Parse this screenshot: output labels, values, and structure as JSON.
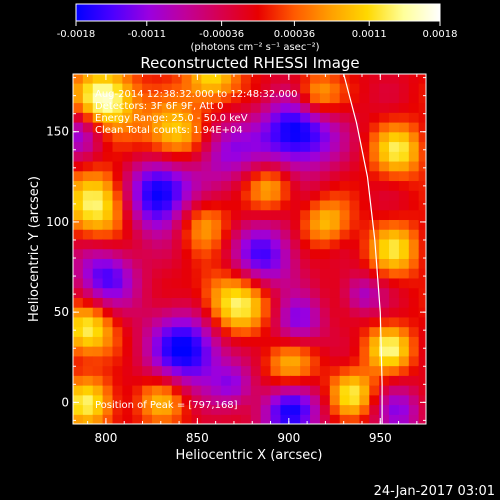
{
  "colorbar": {
    "tick_labels": [
      "-0.0018",
      "-0.0011",
      "-0.00036",
      "0.00036",
      "0.0011",
      "0.0018"
    ],
    "min": -0.0018,
    "max": 0.0018,
    "unit_label": "(photons cm⁻² s⁻¹ asec⁻²)",
    "stops": [
      "#0000ff",
      "#4b00ff",
      "#9a00e0",
      "#c0009a",
      "#d8004c",
      "#e80000",
      "#ff5a00",
      "#ff9f00",
      "#ffd800",
      "#ffff9a",
      "#ffffff"
    ]
  },
  "chart_data": {
    "type": "heatmap",
    "title": "Reconstructed RHESSI Image",
    "xlabel": "Heliocentric X (arcsec)",
    "ylabel": "Heliocentric Y (arcsec)",
    "xlim": [
      782,
      975
    ],
    "ylim": [
      -12,
      182
    ],
    "x_ticks": [
      800,
      850,
      900,
      950
    ],
    "x_tick_labels": [
      "800",
      "850",
      "900",
      "950"
    ],
    "y_ticks": [
      0,
      50,
      100,
      150
    ],
    "y_tick_labels": [
      "0",
      "50",
      "100",
      "150"
    ],
    "value_range": [
      -0.0018,
      0.0018
    ],
    "annotations": [
      "Aug-2014 12:38:32.000 to 12:48:32.000",
      "Detectors: 3F 6F 9F, Att 0",
      "Energy Range: 25.0 - 50.0 keV",
      "Clean     Total counts: 1.94E+04"
    ],
    "peak_label": "Position of Peak = [797,168]",
    "peak": [
      797,
      168
    ],
    "limb_points": [
      [
        930,
        182
      ],
      [
        937,
        155
      ],
      [
        943,
        125
      ],
      [
        947,
        90
      ],
      [
        950,
        50
      ],
      [
        951,
        10
      ],
      [
        951,
        -12
      ]
    ]
  },
  "footer": {
    "date": "24-Jan-2017 03:01"
  }
}
